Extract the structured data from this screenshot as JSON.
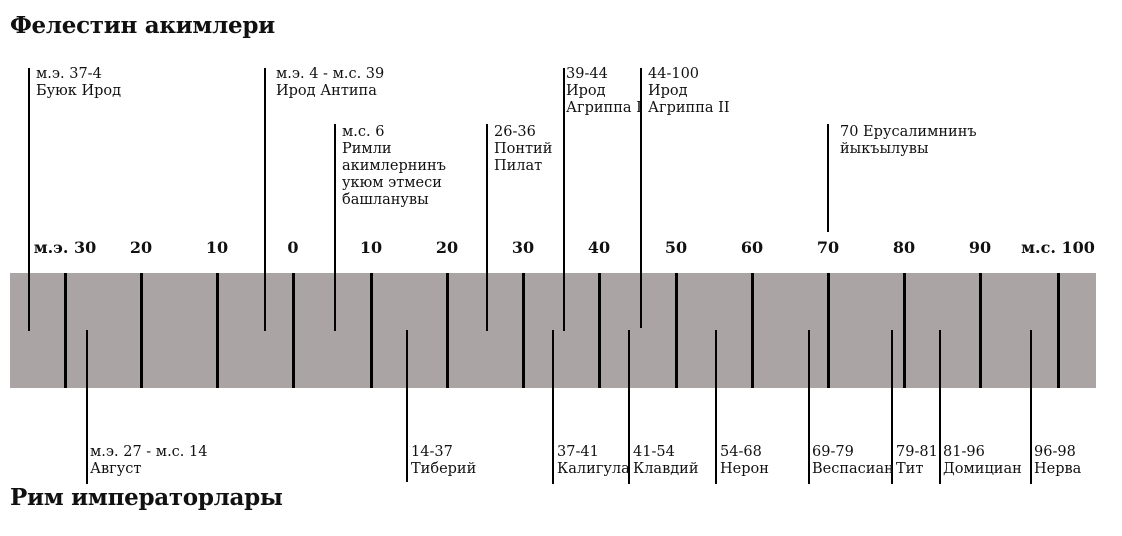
{
  "titles": {
    "rulers": "Фелестин акимлери",
    "emperors": "Рим императорлары"
  },
  "axis_ticks": [
    "м.э. 30",
    "20",
    "10",
    "0",
    "10",
    "20",
    "30",
    "40",
    "50",
    "60",
    "70",
    "80",
    "90",
    "м.с. 100"
  ],
  "top_events": [
    {
      "years": "м.э. 37-4",
      "name": "Буюк Ирод"
    },
    {
      "years": "м.э. 4 - м.с. 39",
      "name": "Ирод Антипа"
    },
    {
      "years": "м.с. 6",
      "name": "Римли\nакимлернинъ\nукюм этмеси\nбашланувы"
    },
    {
      "years": "26-36",
      "name": "Понтий\nПилат"
    },
    {
      "years": "39-44",
      "name": "Ирод\nАгриппа I"
    },
    {
      "years": "44-100",
      "name": "Ирод\nАгриппа II"
    },
    {
      "years": "70 Ерусалимнинъ",
      "name": "йыкъылувы"
    }
  ],
  "bottom_events": [
    {
      "years": "м.э. 27 - м.с. 14",
      "name": "Август"
    },
    {
      "years": "14-37",
      "name": "Тиберий"
    },
    {
      "years": "37-41",
      "name": "Калигула"
    },
    {
      "years": "41-54",
      "name": "Клавдий"
    },
    {
      "years": "54-68",
      "name": "Нерон"
    },
    {
      "years": "69-79",
      "name": "Веспасиан"
    },
    {
      "years": "79-81",
      "name": "Тит"
    },
    {
      "years": "81-96",
      "name": "Домициан"
    },
    {
      "years": "96-98",
      "name": "Нерва"
    }
  ]
}
